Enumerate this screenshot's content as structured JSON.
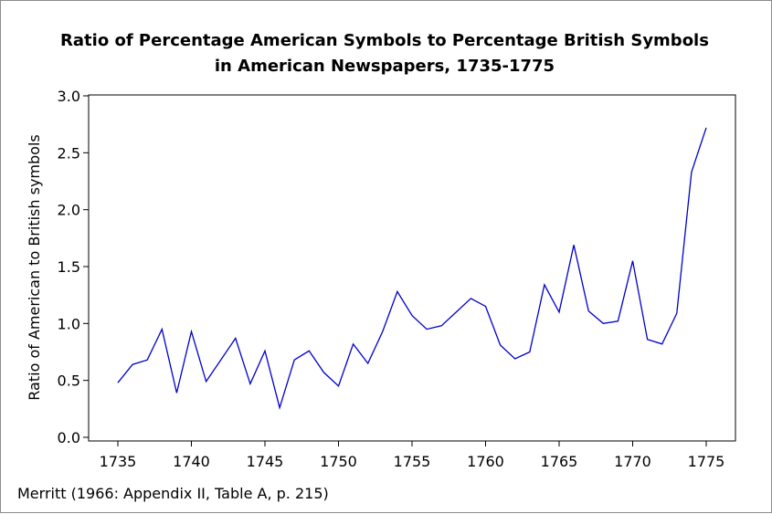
{
  "chart_data": {
    "type": "line",
    "title": "Ratio of Percentage American Symbols to Percentage British Symbols",
    "subtitle": "in American Newspapers, 1735-1775",
    "xlabel": "",
    "ylabel": "Ratio of American to British symbols",
    "source": "Merritt (1966: Appendix II, Table A, p. 215)",
    "xlim": [
      1735,
      1775
    ],
    "ylim": [
      0.0,
      3.0
    ],
    "x_ticks": [
      "1735",
      "1740",
      "1745",
      "1750",
      "1755",
      "1760",
      "1765",
      "1770",
      "1775"
    ],
    "y_ticks": [
      "0.0",
      "0.5",
      "1.0",
      "1.5",
      "2.0",
      "2.5",
      "3.0"
    ],
    "grid": false,
    "line_color": "#0000cc",
    "series": [
      {
        "x": [
          1735,
          1736,
          1737,
          1738,
          1739,
          1740,
          1741,
          1742,
          1743,
          1744,
          1745,
          1746,
          1747,
          1748,
          1749,
          1750,
          1751,
          1752,
          1753,
          1754,
          1755,
          1756,
          1757,
          1758,
          1759,
          1760,
          1761,
          1762,
          1763,
          1764,
          1765,
          1766,
          1767,
          1768,
          1769,
          1770,
          1771,
          1772,
          1773,
          1774,
          1775
        ],
        "values": [
          0.48,
          0.64,
          0.68,
          0.95,
          0.39,
          0.93,
          0.49,
          0.68,
          0.87,
          0.47,
          0.76,
          0.26,
          0.68,
          0.76,
          0.57,
          0.45,
          0.82,
          0.65,
          0.93,
          1.28,
          1.07,
          0.95,
          0.98,
          1.1,
          1.22,
          1.15,
          0.81,
          0.69,
          0.75,
          1.34,
          1.1,
          1.69,
          1.11,
          1.0,
          1.02,
          1.55,
          0.86,
          0.82,
          1.09,
          2.33,
          2.72
        ]
      }
    ]
  }
}
